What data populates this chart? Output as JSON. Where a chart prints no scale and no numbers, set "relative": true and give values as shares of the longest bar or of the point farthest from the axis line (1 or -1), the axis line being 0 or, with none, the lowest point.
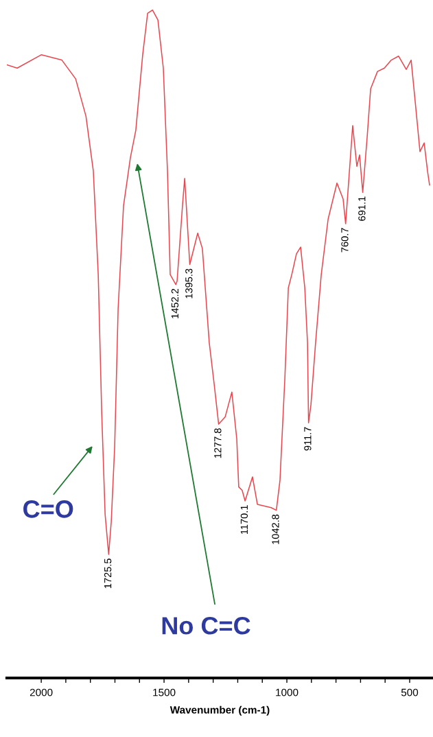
{
  "chart_data": {
    "type": "line",
    "relative": true,
    "xlabel": "Wavenumber (cm-1)",
    "xlim": [
      2140,
      405
    ],
    "xticks": [
      2000,
      {
        "value": 1900,
        "label": null
      },
      {
        "value": 1800,
        "label": null
      },
      {
        "value": 1700,
        "label": null
      },
      {
        "value": 1600,
        "label": null
      },
      1500,
      {
        "value": 1400,
        "label": null
      },
      {
        "value": 1300,
        "label": null
      },
      {
        "value": 1200,
        "label": null
      },
      {
        "value": 1100,
        "label": null
      },
      1000,
      {
        "value": 900,
        "label": null
      },
      {
        "value": 800,
        "label": null
      },
      {
        "value": 700,
        "label": null
      },
      {
        "value": 600,
        "label": null
      },
      500
    ],
    "grid": false,
    "marker": "none",
    "line_style": "solid",
    "series": [
      {
        "color": "#e8474f",
        "x": [
          2140,
          2098,
          2000,
          1916,
          1860,
          1818,
          1788,
          1768,
          1754,
          1740,
          1725.5,
          1715,
          1701,
          1687,
          1665,
          1637,
          1615,
          1587,
          1567,
          1547,
          1525,
          1503,
          1486,
          1475,
          1452.2,
          1447,
          1425,
          1416,
          1395.3,
          1363,
          1344,
          1316,
          1296,
          1277.8,
          1251,
          1224,
          1204,
          1196,
          1182,
          1170.1,
          1140,
          1120,
          1064,
          1042.8,
          1028,
          1008,
          994,
          980,
          961,
          944,
          927,
          916,
          911.7,
          902,
          883,
          860,
          832,
          796,
          771,
          760.7,
          732,
          715,
          704,
          691.1,
          673,
          659,
          631,
          603,
          575,
          545,
          514,
          494,
          477,
          458,
          441,
          427,
          419
        ],
        "values": [
          0.918,
          0.913,
          0.933,
          0.925,
          0.897,
          0.841,
          0.759,
          0.604,
          0.399,
          0.245,
          0.185,
          0.234,
          0.347,
          0.553,
          0.707,
          0.779,
          0.82,
          0.933,
          0.995,
          1.0,
          0.985,
          0.913,
          0.758,
          0.604,
          0.589,
          0.594,
          0.707,
          0.748,
          0.619,
          0.666,
          0.643,
          0.502,
          0.44,
          0.38,
          0.391,
          0.428,
          0.358,
          0.286,
          0.281,
          0.265,
          0.301,
          0.26,
          0.255,
          0.251,
          0.296,
          0.45,
          0.584,
          0.604,
          0.635,
          0.645,
          0.584,
          0.502,
          0.382,
          0.409,
          0.502,
          0.604,
          0.687,
          0.741,
          0.717,
          0.68,
          0.827,
          0.766,
          0.783,
          0.727,
          0.81,
          0.882,
          0.908,
          0.913,
          0.925,
          0.931,
          0.911,
          0.925,
          0.861,
          0.788,
          0.801,
          0.758,
          0.738
        ]
      }
    ],
    "annotations": [
      {
        "text": "1725.5",
        "x": 1725.5,
        "y": 0.185
      },
      {
        "text": "1452.2",
        "x": 1452.2,
        "y": 0.589
      },
      {
        "text": "1395.3",
        "x": 1395.3,
        "y": 0.619
      },
      {
        "text": "1277.8",
        "x": 1277.8,
        "y": 0.38
      },
      {
        "text": "1170.1",
        "x": 1170.1,
        "y": 0.265
      },
      {
        "text": "1042.8",
        "x": 1042.8,
        "y": 0.251
      },
      {
        "text": "911.7",
        "x": 911.7,
        "y": 0.382
      },
      {
        "text": "760.7",
        "x": 760.7,
        "y": 0.68
      },
      {
        "text": "691.1",
        "x": 691.1,
        "y": 0.727
      },
      "C=O",
      "No C=C"
    ]
  }
}
